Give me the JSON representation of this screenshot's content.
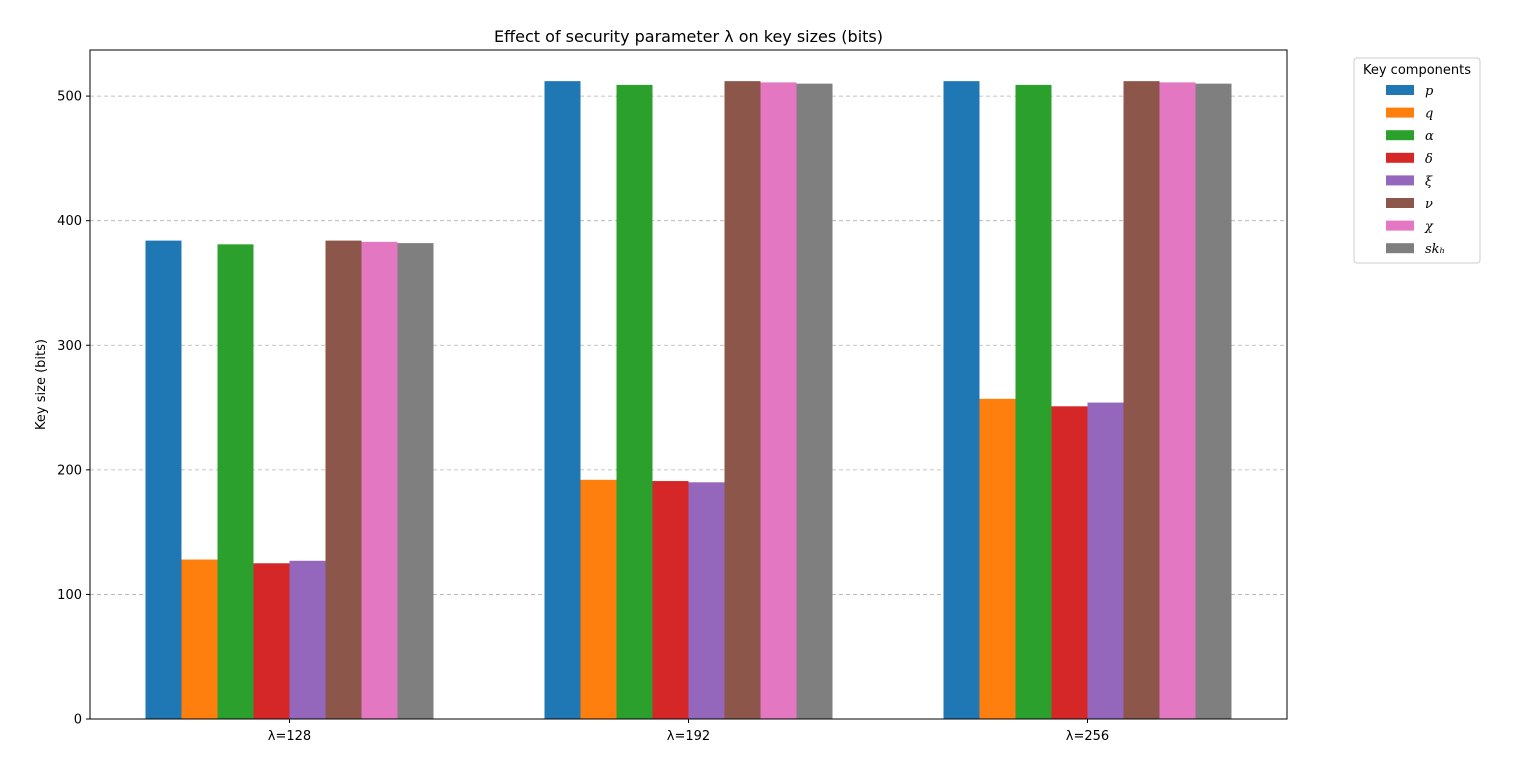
{
  "chart_data": {
    "type": "bar",
    "title": "Effect of security parameter λ on key sizes (bits)",
    "xlabel": "",
    "ylabel": "Key size (bits)",
    "ylim": [
      0,
      537
    ],
    "yticks": [
      0,
      100,
      200,
      300,
      400,
      500
    ],
    "categories": [
      "λ=128",
      "λ=192",
      "λ=256"
    ],
    "grid": {
      "y": true,
      "x": false,
      "style": "dashed"
    },
    "legend": {
      "title": "Key components",
      "placement": "outside-top-right"
    },
    "series": [
      {
        "name": "p",
        "color": "#1f77b4",
        "values": [
          384,
          512,
          512
        ]
      },
      {
        "name": "q",
        "color": "#ff7f0e",
        "values": [
          128,
          192,
          257
        ]
      },
      {
        "name": "α",
        "color": "#2ca02c",
        "values": [
          381,
          509,
          509
        ]
      },
      {
        "name": "δ",
        "color": "#d62728",
        "values": [
          125,
          191,
          251
        ]
      },
      {
        "name": "ξ",
        "color": "#9467bd",
        "values": [
          127,
          190,
          254
        ]
      },
      {
        "name": "ν",
        "color": "#8c564b",
        "values": [
          384,
          512,
          512
        ]
      },
      {
        "name": "χ",
        "color": "#e377c2",
        "values": [
          383,
          511,
          511
        ]
      },
      {
        "name": "skₕ",
        "color": "#7f7f7f",
        "values": [
          382,
          510,
          510
        ]
      }
    ]
  }
}
